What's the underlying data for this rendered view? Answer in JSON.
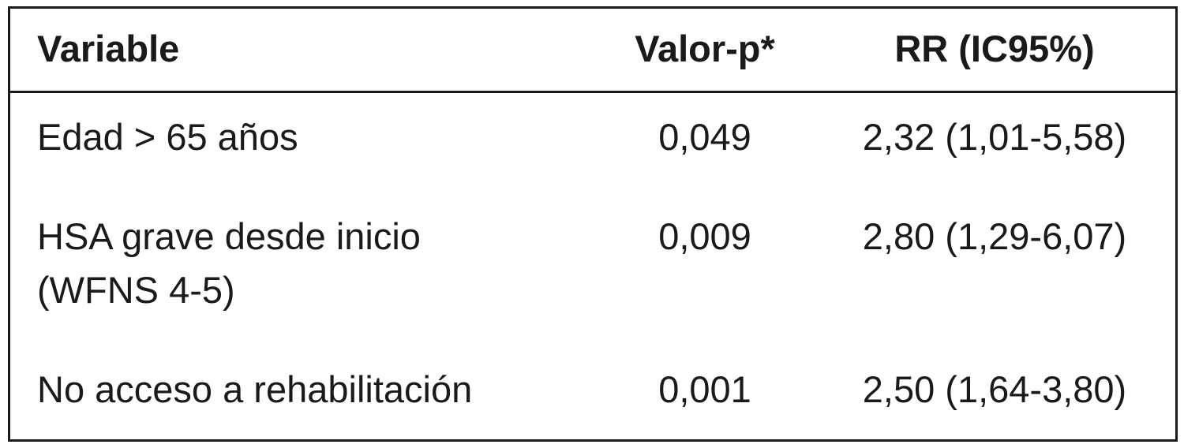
{
  "table": {
    "columns": [
      "Variable",
      "Valor-p*",
      "RR (IC95%)"
    ],
    "rows": [
      [
        [
          "Edad > 65 años"
        ],
        "0,049",
        "2,32 (1,01-5,58)"
      ],
      [
        [
          "HSA grave desde inicio",
          "(WFNS 4-5)"
        ],
        "0,009",
        "2,80 (1,29-6,07)"
      ],
      [
        [
          "No acceso a rehabilitación"
        ],
        "0,001",
        "2,50 (1,64-3,80)"
      ]
    ]
  }
}
